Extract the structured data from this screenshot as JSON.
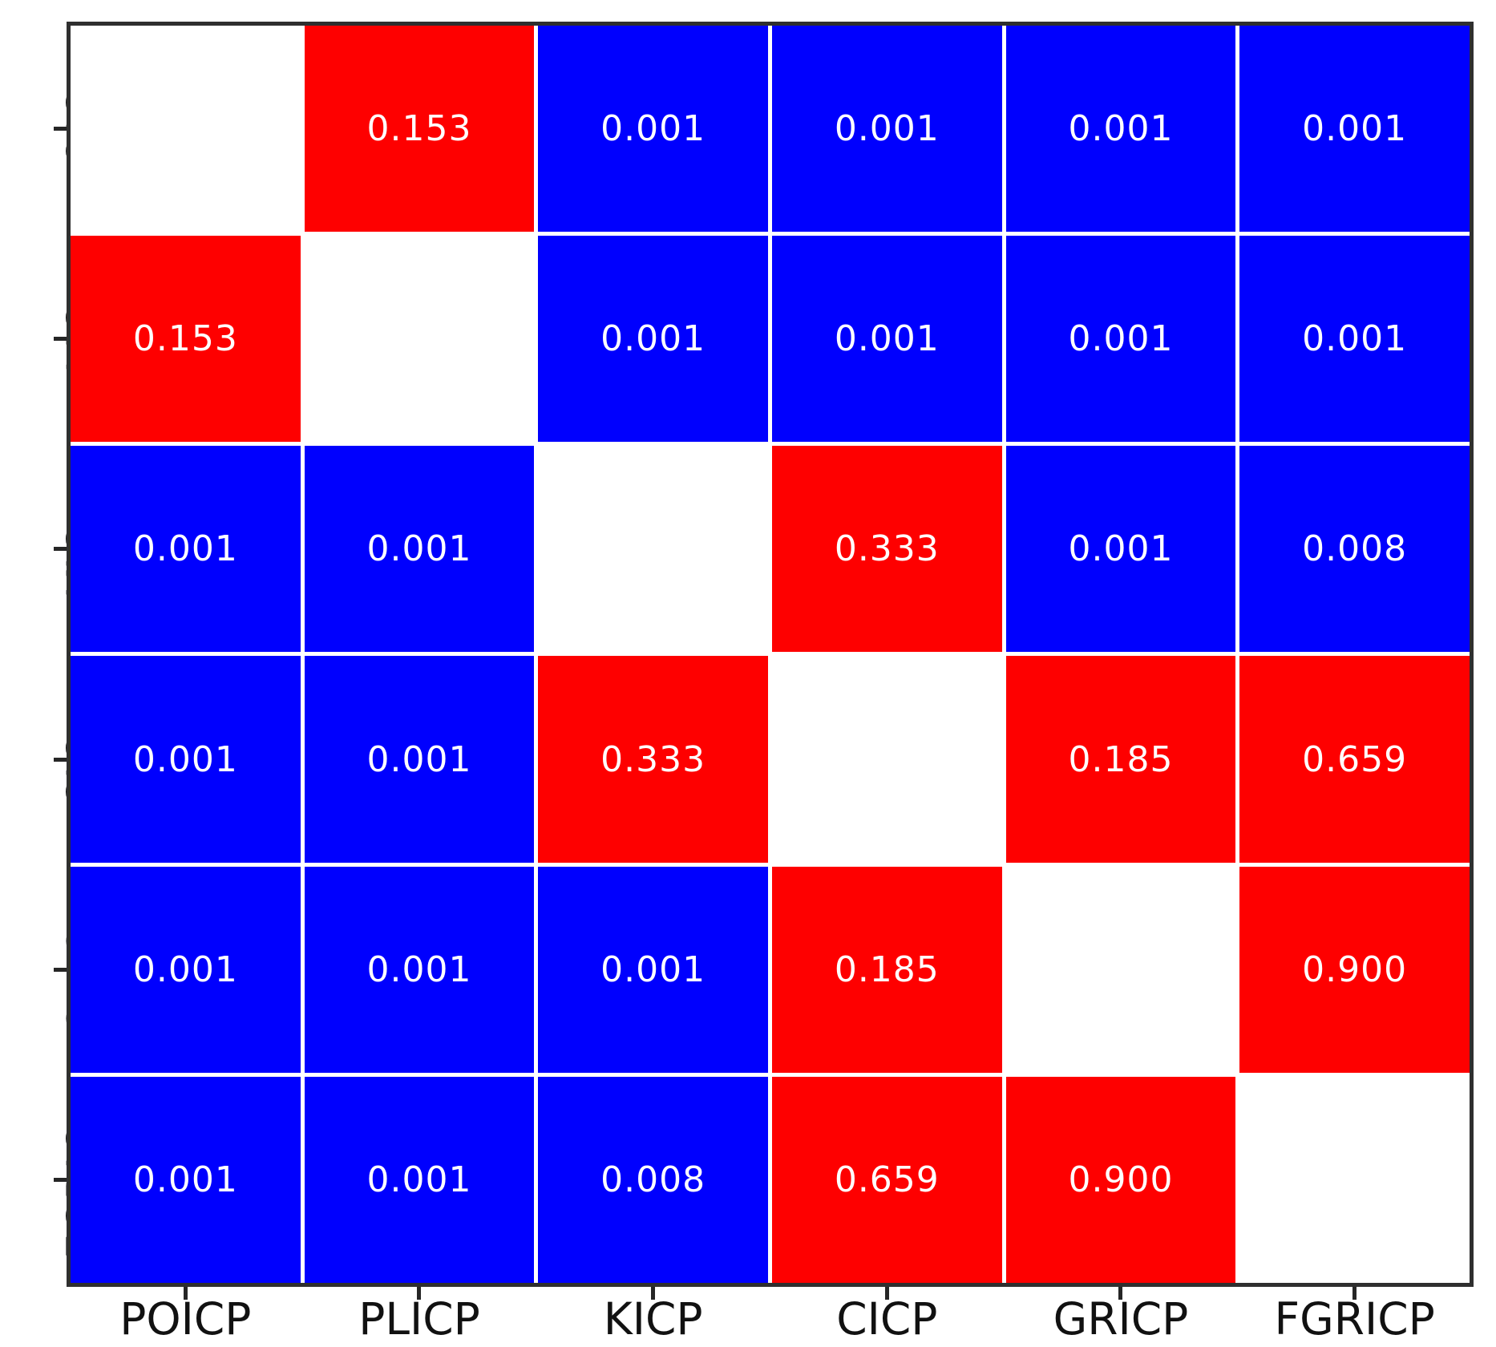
{
  "chart_data": {
    "type": "heatmap",
    "title": "",
    "xlabel": "",
    "ylabel": "",
    "categories": [
      "POICP",
      "PLICP",
      "KICP",
      "CICP",
      "GRICP",
      "FGRICP"
    ],
    "matrix": [
      [
        null,
        0.153,
        0.001,
        0.001,
        0.001,
        0.001
      ],
      [
        0.153,
        null,
        0.001,
        0.001,
        0.001,
        0.001
      ],
      [
        0.001,
        0.001,
        null,
        0.333,
        0.001,
        0.008
      ],
      [
        0.001,
        0.001,
        0.333,
        null,
        0.185,
        0.659
      ],
      [
        0.001,
        0.001,
        0.001,
        0.185,
        null,
        0.9
      ],
      [
        0.001,
        0.001,
        0.008,
        0.659,
        0.9,
        null
      ]
    ],
    "value_decimals": 3,
    "significance_threshold": 0.05,
    "cell_colors": {
      "significant": "#0000fe",
      "not_significant": "#fe0000",
      "diagonal": "#ffffff"
    },
    "cell_text_color": "#ffffff",
    "axis_frame_color": "#2f2f2f",
    "gridline_color": "#ffffff",
    "legend": "none",
    "grid": true
  }
}
